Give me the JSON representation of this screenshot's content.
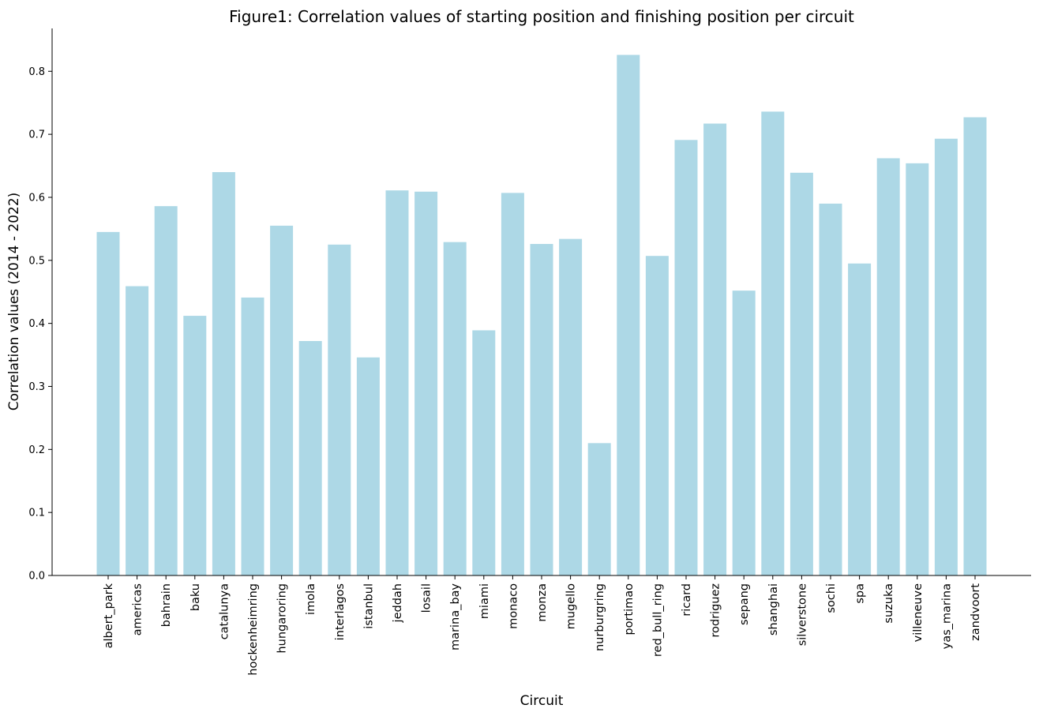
{
  "chart_data": {
    "type": "bar",
    "title": "Figure1: Correlation values of starting position and finishing position per circuit",
    "xlabel": "Circuit",
    "ylabel": "Correlation values (2014 - 2022)",
    "ylim": [
      0,
      0.868
    ],
    "yticks": [
      "0.0",
      "0.1",
      "0.2",
      "0.3",
      "0.4",
      "0.5",
      "0.6",
      "0.7",
      "0.8"
    ],
    "grid": false,
    "bar_color": "#add8e6",
    "categories": [
      "albert_park",
      "americas",
      "bahrain",
      "baku",
      "catalunya",
      "hockenheimring",
      "hungaroring",
      "imola",
      "interlagos",
      "istanbul",
      "jeddah",
      "losail",
      "marina_bay",
      "miami",
      "monaco",
      "monza",
      "mugello",
      "nurburgring",
      "portimao",
      "red_bull_ring",
      "ricard",
      "rodriguez",
      "sepang",
      "shanghai",
      "silverstone",
      "sochi",
      "spa",
      "suzuka",
      "villeneuve",
      "yas_marina",
      "zandvoort"
    ],
    "values": [
      0.545,
      0.459,
      0.586,
      0.412,
      0.64,
      0.441,
      0.555,
      0.372,
      0.525,
      0.346,
      0.611,
      0.609,
      0.529,
      0.389,
      0.607,
      0.526,
      0.534,
      0.21,
      0.826,
      0.507,
      0.691,
      0.717,
      0.452,
      0.736,
      0.639,
      0.59,
      0.495,
      0.662,
      0.654,
      0.693,
      0.727
    ]
  }
}
